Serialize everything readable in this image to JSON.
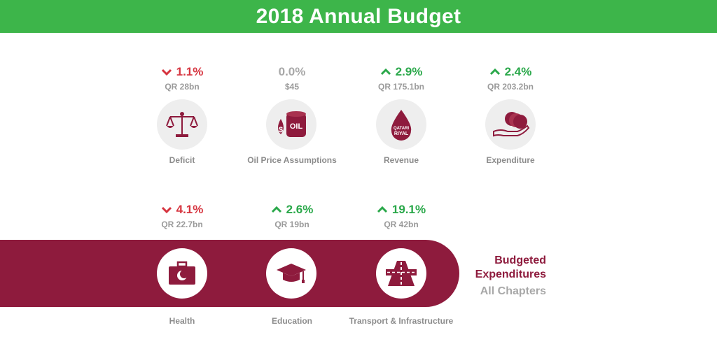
{
  "header": {
    "title": "2018 Annual Budget"
  },
  "colors": {
    "green": "#3db54a",
    "maroon": "#8e1b3d",
    "red": "#d6343f",
    "grey": "#a8a8a8"
  },
  "top_metrics": [
    {
      "id": "deficit",
      "pct": "1.1%",
      "direction": "down",
      "amount": "QR 28bn",
      "label": "Deficit",
      "icon": "scales-icon"
    },
    {
      "id": "oil",
      "pct": "0.0%",
      "direction": "flat",
      "amount": "$45",
      "label": "Oil Price Assumptions",
      "icon": "oil-barrel-icon"
    },
    {
      "id": "revenue",
      "pct": "2.9%",
      "direction": "up",
      "amount": "QR 175.1bn",
      "label": "Revenue",
      "icon": "riyal-drop-icon"
    },
    {
      "id": "expenditure",
      "pct": "2.4%",
      "direction": "up",
      "amount": "QR 203.2bn",
      "label": "Expenditure",
      "icon": "coins-hand-icon"
    }
  ],
  "bottom_metrics": [
    {
      "id": "health",
      "pct": "4.1%",
      "direction": "down",
      "amount": "QR 22.7bn",
      "label": "Health",
      "icon": "medical-bag-icon"
    },
    {
      "id": "education",
      "pct": "2.6%",
      "direction": "up",
      "amount": "QR 19bn",
      "label": "Education",
      "icon": "graduation-cap-icon"
    },
    {
      "id": "transport",
      "pct": "19.1%",
      "direction": "up",
      "amount": "QR 42bn",
      "label": "Transport & Infrastructure",
      "icon": "road-icon"
    }
  ],
  "oil_icon_text": "OIL",
  "riyal_icon_text": [
    "QATARI",
    "RIYAL"
  ],
  "band": {
    "line1": "Budgeted",
    "line2": "Expenditures",
    "line3": "All Chapters"
  }
}
